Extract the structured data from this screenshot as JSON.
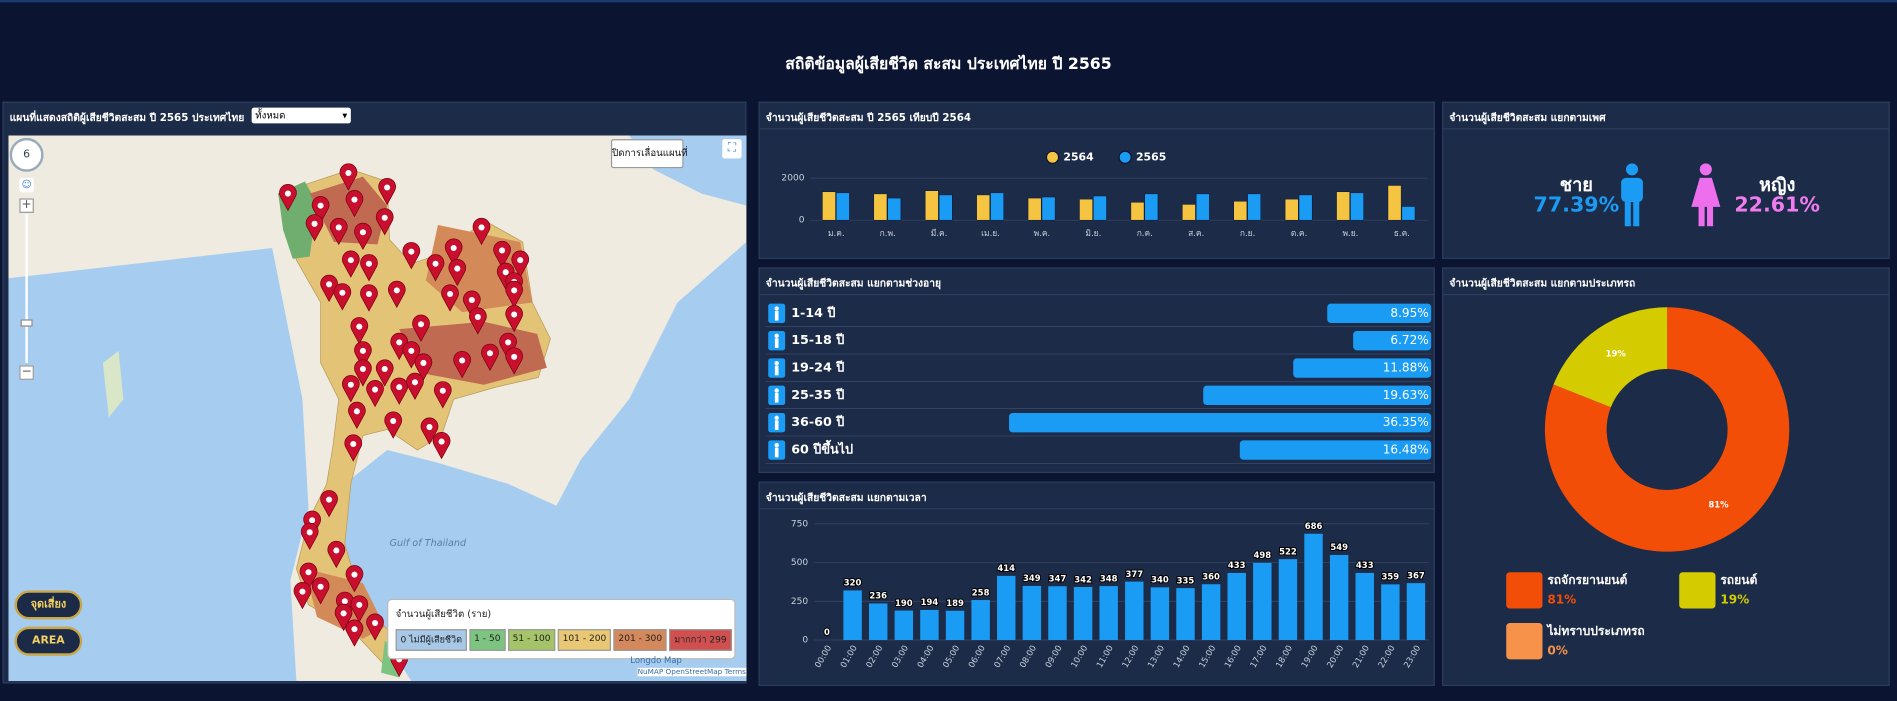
{
  "header": {
    "title": "สถิติข้อมูลผู้เสียชีวิต สะสม ประเทศไทย ปี 2565"
  },
  "map_panel": {
    "title": "แผนที่แสดงสถิติผู้เสียชีวิตสะสม ปี 2565 ประเทศไทย",
    "filter": "ทั้งหมด",
    "lock_button": "ปิดการเลื่อนแผนที่",
    "zoom": "6",
    "buttons": [
      "จุดเสี่ยง",
      "AREA"
    ],
    "legend": {
      "title": "จำนวนผู้เสียชีวิต (ราย)",
      "items": [
        "0 ไม่มีผู้เสียชีวิต",
        "1 - 50",
        "51 - 100",
        "101 - 200",
        "201 - 300",
        "มากกว่า 299"
      ]
    },
    "place_labels": [
      "Gulf of Thailand"
    ],
    "attribution": [
      "Longdo Map",
      "NuMAP OpenStreetMap Terms"
    ]
  },
  "gender_panel": {
    "title": "จำนวนผู้เสียชีวิตสะสม แยกตามเพศ",
    "male": {
      "label": "ชาย",
      "value": "77.39%"
    },
    "female": {
      "label": "หญิง",
      "value": "22.61%"
    }
  },
  "chart_data": [
    {
      "type": "bar",
      "title": "จำนวนผู้เสียชีวิตสะสม ปี 2565 เทียบปี 2564",
      "categories": [
        "ม.ค.",
        "ก.พ.",
        "มี.ค.",
        "เม.ย.",
        "พ.ค.",
        "มิ.ย.",
        "ก.ค.",
        "ส.ค.",
        "ก.ย.",
        "ต.ค.",
        "พ.ย.",
        "ธ.ค."
      ],
      "series": [
        {
          "name": "2564",
          "color": "#f5c542",
          "values": [
            1350,
            1250,
            1400,
            1200,
            1050,
            1000,
            850,
            750,
            900,
            1000,
            1350,
            1650
          ]
        },
        {
          "name": "2565",
          "color": "#1a9cf5",
          "values": [
            1300,
            1050,
            1200,
            1300,
            1100,
            1150,
            1250,
            1250,
            1250,
            1200,
            1300,
            650
          ]
        }
      ],
      "ylim": [
        0,
        2300
      ],
      "yticks": [
        0,
        2000
      ],
      "grid": true
    },
    {
      "type": "hbar",
      "title": "จำนวนผู้เสียชีวิตสะสม แยกตามช่วงอายุ",
      "categories": [
        "1-14 ปี",
        "15-18 ปี",
        "19-24 ปี",
        "25-35 ปี",
        "36-60 ปี",
        "60 ปีขึ้นไป"
      ],
      "values": [
        8.95,
        6.72,
        11.88,
        19.63,
        36.35,
        16.48
      ],
      "value_labels": [
        "8.95%",
        "6.72%",
        "11.88%",
        "19.63%",
        "36.35%",
        "16.48%"
      ],
      "xlim": [
        0,
        55
      ],
      "color": "#1a9cf5"
    },
    {
      "type": "bar",
      "title": "จำนวนผู้เสียชีวิตสะสม แยกตามเวลา",
      "categories": [
        "00:00",
        "01:00",
        "02:00",
        "03:00",
        "04:00",
        "05:00",
        "06:00",
        "07:00",
        "08:00",
        "09:00",
        "10:00",
        "11:00",
        "12:00",
        "13:00",
        "14:00",
        "15:00",
        "16:00",
        "17:00",
        "18:00",
        "19:00",
        "20:00",
        "21:00",
        "22:00",
        "23:00"
      ],
      "values": [
        0,
        320,
        236,
        190,
        194,
        189,
        258,
        414,
        349,
        347,
        342,
        348,
        377,
        340,
        335,
        360,
        433,
        498,
        522,
        686,
        549,
        433,
        359,
        367
      ],
      "color": "#1a9cf5",
      "ylim": [
        0,
        750
      ],
      "yticks": [
        0,
        250,
        500,
        750
      ],
      "grid": true
    },
    {
      "type": "pie",
      "title": "จำนวนผู้เสียชีวิตสะสม แยกตามประเภทรถ",
      "categories": [
        "รถจักรยานยนต์",
        "รถยนต์",
        "ไม่ทราบประเภทรถ"
      ],
      "values": [
        81,
        19,
        0
      ],
      "value_labels": [
        "81%",
        "19%",
        "0%"
      ],
      "colors": [
        "#f24e07",
        "#d4cc00",
        "#f7924a"
      ]
    }
  ]
}
